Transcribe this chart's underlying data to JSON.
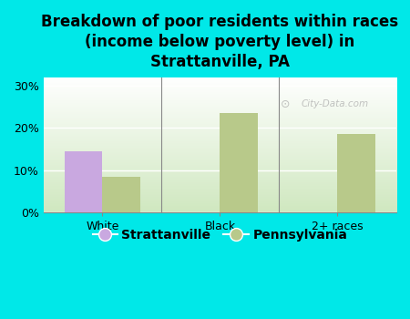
{
  "title": "Breakdown of poor residents within races\n(income below poverty level) in\nStrattanville, PA",
  "categories": [
    "White",
    "Black",
    "2+ races"
  ],
  "strattanville_values": [
    14.5,
    0,
    0
  ],
  "pennsylvania_values": [
    8.5,
    23.5,
    18.5
  ],
  "strattanville_color": "#c9a8e0",
  "pennsylvania_color": "#b8c98a",
  "background_color": "#00e8e8",
  "plot_bg_top": "#ffffff",
  "plot_bg_bottom": "#d0e8c0",
  "ylim": [
    0,
    32
  ],
  "yticks": [
    0,
    10,
    20,
    30
  ],
  "ytick_labels": [
    "0%",
    "10%",
    "20%",
    "30%"
  ],
  "bar_width": 0.32,
  "legend_labels": [
    "Strattanville",
    "Pennsylvania"
  ],
  "watermark": "City-Data.com",
  "title_fontsize": 12,
  "tick_fontsize": 9,
  "legend_fontsize": 10
}
